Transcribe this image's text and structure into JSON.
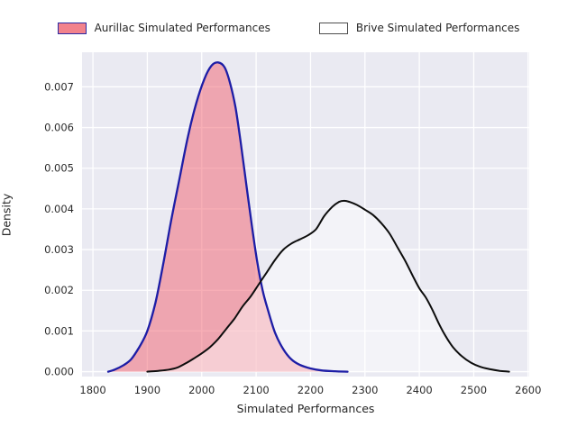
{
  "legend": {
    "entries": [
      {
        "label": "Aurillac Simulated Performances",
        "swatch_fill": "#f2828c",
        "swatch_border": "#2a2aa5"
      },
      {
        "label": "Brive Simulated Performances",
        "swatch_fill": "#ffffff",
        "swatch_border": "#4d4d4d"
      }
    ]
  },
  "chart_data": {
    "type": "area",
    "title": "",
    "xlabel": "Simulated Performances",
    "ylabel": "Density",
    "xlim": [
      1780,
      2602
    ],
    "ylim": [
      -0.00012,
      0.00785
    ],
    "x_ticks": [
      1800,
      1900,
      2000,
      2100,
      2200,
      2300,
      2400,
      2500,
      2600
    ],
    "y_ticks": [
      0.0,
      0.001,
      0.002,
      0.003,
      0.004,
      0.005,
      0.006,
      0.007
    ],
    "grid": true,
    "plot_background": "#eaeaf2",
    "gridline_color": "#ffffff",
    "legend_position": "top",
    "series": [
      {
        "name": "Aurillac Simulated Performances",
        "line_color": "#1d1da6",
        "fill_color": "rgba(242,96,110,0.50)",
        "peak": {
          "x": 2030,
          "density": 0.0076
        },
        "points": [
          [
            1828,
            0.0
          ],
          [
            1840,
            5e-05
          ],
          [
            1855,
            0.00015
          ],
          [
            1870,
            0.0003
          ],
          [
            1885,
            0.0006
          ],
          [
            1900,
            0.001
          ],
          [
            1915,
            0.0017
          ],
          [
            1930,
            0.0027
          ],
          [
            1945,
            0.0038
          ],
          [
            1960,
            0.0048
          ],
          [
            1975,
            0.0058
          ],
          [
            1990,
            0.0066
          ],
          [
            2005,
            0.0072
          ],
          [
            2018,
            0.00752
          ],
          [
            2030,
            0.0076
          ],
          [
            2042,
            0.00748
          ],
          [
            2052,
            0.0071
          ],
          [
            2062,
            0.0065
          ],
          [
            2072,
            0.0056
          ],
          [
            2082,
            0.0046
          ],
          [
            2092,
            0.0036
          ],
          [
            2102,
            0.0027
          ],
          [
            2112,
            0.002
          ],
          [
            2122,
            0.0015
          ],
          [
            2135,
            0.00095
          ],
          [
            2150,
            0.00055
          ],
          [
            2165,
            0.0003
          ],
          [
            2180,
            0.00017
          ],
          [
            2200,
            8e-05
          ],
          [
            2220,
            3e-05
          ],
          [
            2245,
            1e-05
          ],
          [
            2268,
            0.0
          ]
        ]
      },
      {
        "name": "Brive Simulated Performances",
        "line_color": "#0d0d0d",
        "fill_color": "rgba(255,255,255,0.45)",
        "peak": {
          "x": 2262,
          "density": 0.0042
        },
        "points": [
          [
            1900,
            0.0
          ],
          [
            1920,
            2e-05
          ],
          [
            1940,
            5e-05
          ],
          [
            1955,
            0.0001
          ],
          [
            1970,
            0.0002
          ],
          [
            1985,
            0.00032
          ],
          [
            2000,
            0.00045
          ],
          [
            2015,
            0.0006
          ],
          [
            2030,
            0.0008
          ],
          [
            2045,
            0.00105
          ],
          [
            2060,
            0.0013
          ],
          [
            2075,
            0.0016
          ],
          [
            2090,
            0.00185
          ],
          [
            2105,
            0.00215
          ],
          [
            2120,
            0.00245
          ],
          [
            2135,
            0.00275
          ],
          [
            2150,
            0.003
          ],
          [
            2165,
            0.00315
          ],
          [
            2180,
            0.00325
          ],
          [
            2195,
            0.00335
          ],
          [
            2210,
            0.0035
          ],
          [
            2225,
            0.00382
          ],
          [
            2240,
            0.00405
          ],
          [
            2252,
            0.00417
          ],
          [
            2262,
            0.0042
          ],
          [
            2272,
            0.00417
          ],
          [
            2285,
            0.0041
          ],
          [
            2300,
            0.00398
          ],
          [
            2315,
            0.00385
          ],
          [
            2330,
            0.00365
          ],
          [
            2345,
            0.0034
          ],
          [
            2360,
            0.00305
          ],
          [
            2375,
            0.0027
          ],
          [
            2388,
            0.00235
          ],
          [
            2400,
            0.00205
          ],
          [
            2412,
            0.00182
          ],
          [
            2424,
            0.00152
          ],
          [
            2436,
            0.00118
          ],
          [
            2448,
            0.00088
          ],
          [
            2462,
            0.0006
          ],
          [
            2478,
            0.00038
          ],
          [
            2495,
            0.00022
          ],
          [
            2512,
            0.00012
          ],
          [
            2530,
            6e-05
          ],
          [
            2548,
            2e-05
          ],
          [
            2565,
            0.0
          ]
        ]
      }
    ]
  }
}
